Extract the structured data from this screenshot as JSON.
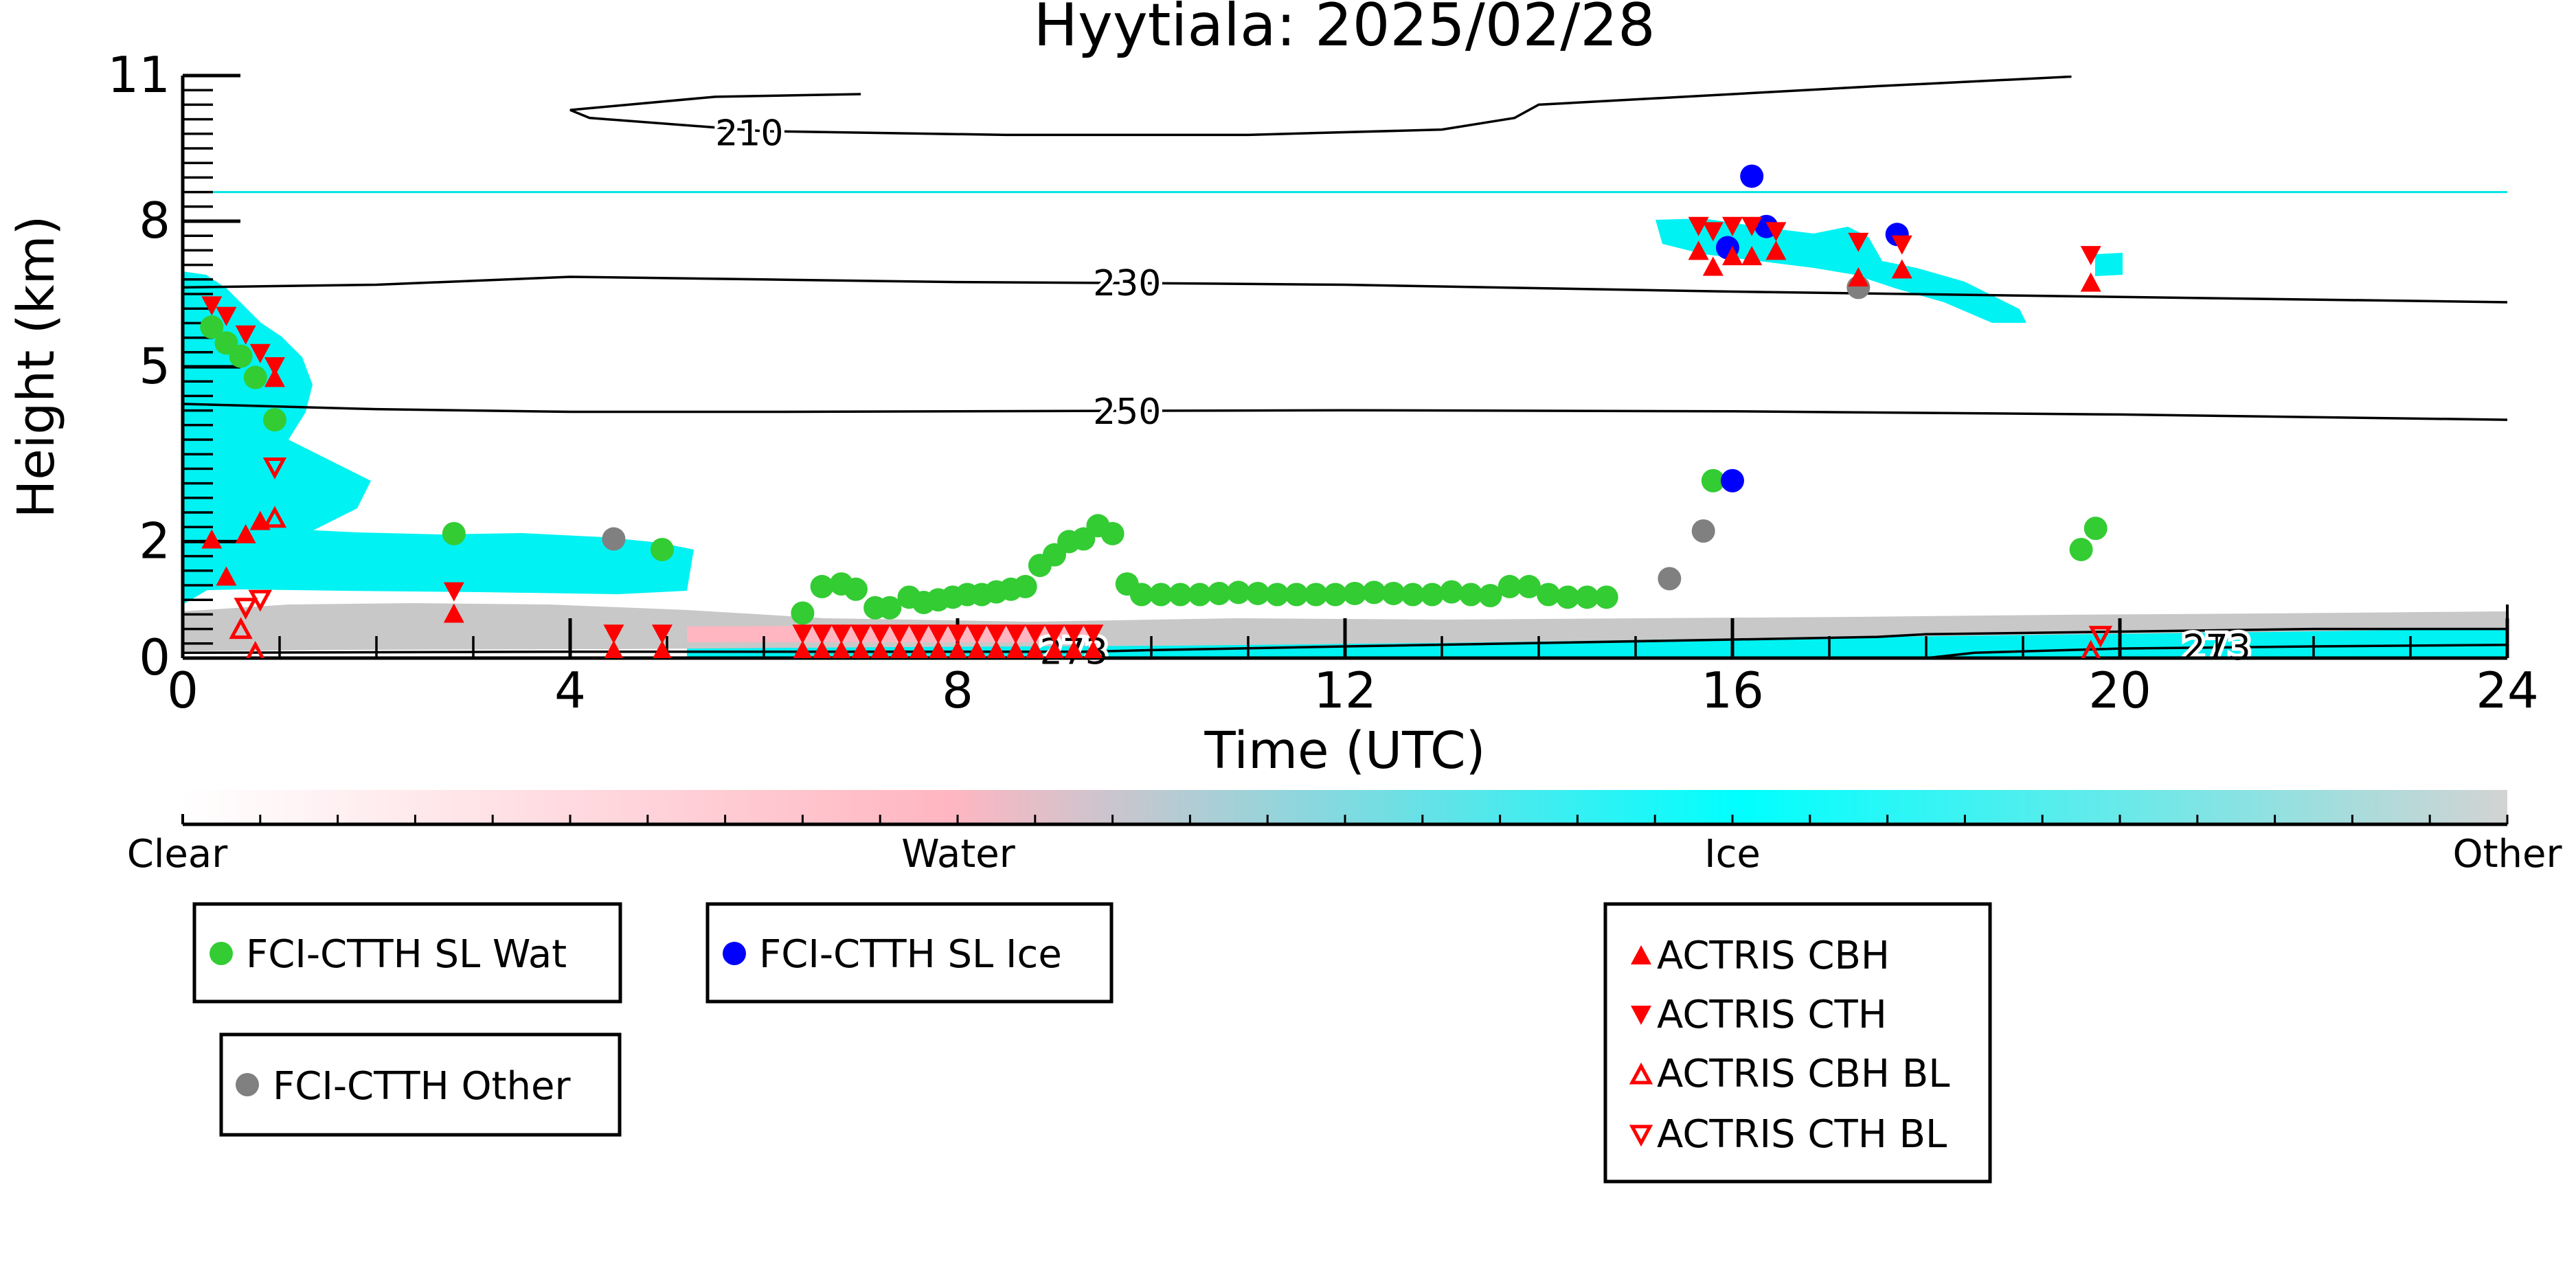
{
  "chart_data": {
    "type": "scatter",
    "title": "Hyytiala: 2025/02/28",
    "xlabel": "Time (UTC)",
    "ylabel": "Height (km)",
    "xlim": [
      0,
      24
    ],
    "ylim": [
      0,
      11
    ],
    "xticks": [
      "0",
      "4",
      "8",
      "12",
      "16",
      "20",
      "24"
    ],
    "yticks": [
      "0",
      "2",
      "5",
      "8",
      "11"
    ],
    "ytick_values": [
      0,
      2.2,
      5.5,
      8.25,
      11
    ],
    "reference_line_km": 8.8,
    "contours": [
      {
        "label": "210",
        "points": [
          [
            7.0,
            10.65
          ],
          [
            5.5,
            10.6
          ],
          [
            4.0,
            10.35
          ],
          [
            4.2,
            10.2
          ],
          [
            6.0,
            9.95
          ],
          [
            8.5,
            9.88
          ],
          [
            11.0,
            9.88
          ],
          [
            13.0,
            9.98
          ],
          [
            13.75,
            10.2
          ],
          [
            14.0,
            10.45
          ],
          [
            15.5,
            10.6
          ],
          [
            17.5,
            10.8
          ],
          [
            19.5,
            10.98
          ]
        ]
      },
      {
        "label": "230",
        "points": [
          [
            0,
            7.0
          ],
          [
            2.0,
            7.05
          ],
          [
            4.0,
            7.2
          ],
          [
            6.0,
            7.15
          ],
          [
            8.0,
            7.1
          ],
          [
            10.0,
            7.08
          ],
          [
            12.0,
            7.05
          ],
          [
            16.0,
            6.92
          ],
          [
            20.0,
            6.82
          ],
          [
            24.0,
            6.72
          ]
        ]
      },
      {
        "label": "250",
        "points": [
          [
            0,
            4.8
          ],
          [
            2.0,
            4.7
          ],
          [
            4.0,
            4.65
          ],
          [
            6.0,
            4.65
          ],
          [
            8.0,
            4.66
          ],
          [
            12.0,
            4.68
          ],
          [
            16.0,
            4.66
          ],
          [
            20.0,
            4.6
          ],
          [
            24.0,
            4.5
          ]
        ]
      },
      {
        "label": "273",
        "points": [
          [
            0,
            0.1
          ],
          [
            4.0,
            0.12
          ],
          [
            6.0,
            0.12
          ],
          [
            9.3,
            0.12
          ],
          [
            10.0,
            0.15
          ],
          [
            12.0,
            0.22
          ],
          [
            16.0,
            0.35
          ],
          [
            17.5,
            0.4
          ],
          [
            18.0,
            0.45
          ],
          [
            20.0,
            0.5
          ],
          [
            22.0,
            0.55
          ],
          [
            24.0,
            0.55
          ]
        ]
      },
      {
        "label": "273",
        "points": [
          [
            18.0,
            0.0
          ],
          [
            18.5,
            0.1
          ],
          [
            20.0,
            0.18
          ],
          [
            22.0,
            0.22
          ],
          [
            24.0,
            0.25
          ]
        ]
      }
    ],
    "series": [
      {
        "name": "FCI-CTTH SL Wat",
        "marker": "circle",
        "color": "#33cc33",
        "x": [
          0.3,
          0.45,
          0.6,
          0.75,
          0.95,
          2.8,
          4.95,
          6.4,
          6.6,
          6.8,
          6.95,
          7.15,
          7.3,
          7.5,
          7.65,
          7.8,
          7.95,
          8.1,
          8.25,
          8.4,
          8.55,
          8.7,
          8.85,
          9.0,
          9.15,
          9.3,
          9.45,
          9.6,
          9.75,
          9.9,
          10.1,
          10.3,
          10.5,
          10.7,
          10.9,
          11.1,
          11.3,
          11.5,
          11.7,
          11.9,
          12.1,
          12.3,
          12.5,
          12.7,
          12.9,
          13.1,
          13.3,
          13.5,
          13.7,
          13.9,
          14.1,
          14.3,
          14.5,
          14.7,
          15.8,
          19.6,
          19.75
        ],
        "y": [
          6.25,
          5.95,
          5.7,
          5.3,
          4.5,
          2.35,
          2.05,
          0.85,
          1.35,
          1.4,
          1.3,
          0.95,
          0.95,
          1.15,
          1.05,
          1.1,
          1.15,
          1.2,
          1.2,
          1.25,
          1.3,
          1.35,
          1.75,
          1.95,
          2.2,
          2.25,
          2.5,
          2.35,
          1.4,
          1.2,
          1.2,
          1.2,
          1.2,
          1.22,
          1.24,
          1.22,
          1.2,
          1.2,
          1.2,
          1.2,
          1.22,
          1.24,
          1.22,
          1.2,
          1.2,
          1.25,
          1.2,
          1.18,
          1.35,
          1.35,
          1.2,
          1.15,
          1.15,
          1.15,
          3.35,
          2.05,
          2.45
        ]
      },
      {
        "name": "FCI-CTTH SL Ice",
        "marker": "circle",
        "color": "#0000ff",
        "x": [
          15.95,
          16.2,
          16.35,
          17.7,
          16.0
        ],
        "y": [
          7.75,
          9.1,
          8.15,
          8.0,
          3.35
        ]
      },
      {
        "name": "FCI-CTTH Other",
        "marker": "circle",
        "color": "#808080",
        "x": [
          4.45,
          15.35,
          15.7,
          17.3
        ],
        "y": [
          2.25,
          1.5,
          2.4,
          7.0
        ]
      },
      {
        "name": "ACTRIS CBH",
        "marker": "triangle-up",
        "color": "#ff0000",
        "filled": true,
        "x": [
          0.3,
          0.45,
          0.65,
          0.8,
          0.95,
          2.8,
          4.45,
          4.95,
          6.4,
          6.6,
          6.8,
          7.0,
          7.2,
          7.4,
          7.6,
          7.8,
          8.0,
          8.2,
          8.4,
          8.6,
          8.8,
          9.0,
          9.2,
          9.4,
          15.65,
          15.8,
          16.0,
          16.2,
          16.45,
          17.3,
          17.75,
          19.7
        ],
        "y": [
          2.25,
          1.55,
          2.35,
          2.6,
          5.3,
          0.85,
          0.15,
          0.15,
          0.15,
          0.15,
          0.15,
          0.15,
          0.15,
          0.15,
          0.15,
          0.15,
          0.15,
          0.15,
          0.15,
          0.15,
          0.15,
          0.15,
          0.15,
          0.15,
          7.7,
          7.4,
          7.6,
          7.6,
          7.7,
          7.2,
          7.35,
          7.1
        ]
      },
      {
        "name": "ACTRIS CTH",
        "marker": "triangle-down",
        "color": "#ff0000",
        "filled": true,
        "x": [
          0.3,
          0.45,
          0.65,
          0.8,
          0.95,
          2.8,
          4.45,
          4.95,
          6.4,
          6.6,
          6.8,
          7.0,
          7.2,
          7.4,
          7.6,
          7.8,
          8.0,
          8.2,
          8.4,
          8.6,
          8.8,
          9.0,
          9.2,
          9.4,
          15.65,
          15.8,
          16.0,
          16.2,
          16.45,
          17.3,
          17.75,
          19.7
        ],
        "y": [
          6.65,
          6.45,
          6.1,
          5.75,
          5.5,
          1.25,
          0.45,
          0.45,
          0.45,
          0.45,
          0.45,
          0.45,
          0.45,
          0.45,
          0.45,
          0.45,
          0.45,
          0.45,
          0.45,
          0.45,
          0.45,
          0.45,
          0.45,
          0.45,
          8.15,
          8.05,
          8.15,
          8.15,
          8.05,
          7.85,
          7.8,
          7.6
        ]
      },
      {
        "name": "ACTRIS CBH BL",
        "marker": "triangle-up",
        "color": "#ff0000",
        "filled": false,
        "x": [
          0.6,
          0.75,
          0.95,
          19.7
        ],
        "y": [
          0.55,
          0.1,
          2.65,
          0.12
        ]
      },
      {
        "name": "ACTRIS CTH BL",
        "marker": "triangle-down",
        "color": "#ff0000",
        "filled": false,
        "x": [
          0.65,
          0.8,
          0.95,
          19.8
        ],
        "y": [
          0.95,
          1.1,
          3.6,
          0.42
        ]
      }
    ]
  },
  "colorbar": {
    "labels": [
      "Clear",
      "Water",
      "Ice",
      "Other"
    ],
    "colors": [
      "#ffffff",
      "#ffb6c1",
      "#00ffff",
      "#d3d3d3"
    ]
  },
  "colors": {
    "ice": "#00f2f2",
    "other": "#c8c8c8",
    "water": "#ffb6c1",
    "reference_line": "#00e5e5",
    "actris": "#ff0000"
  }
}
